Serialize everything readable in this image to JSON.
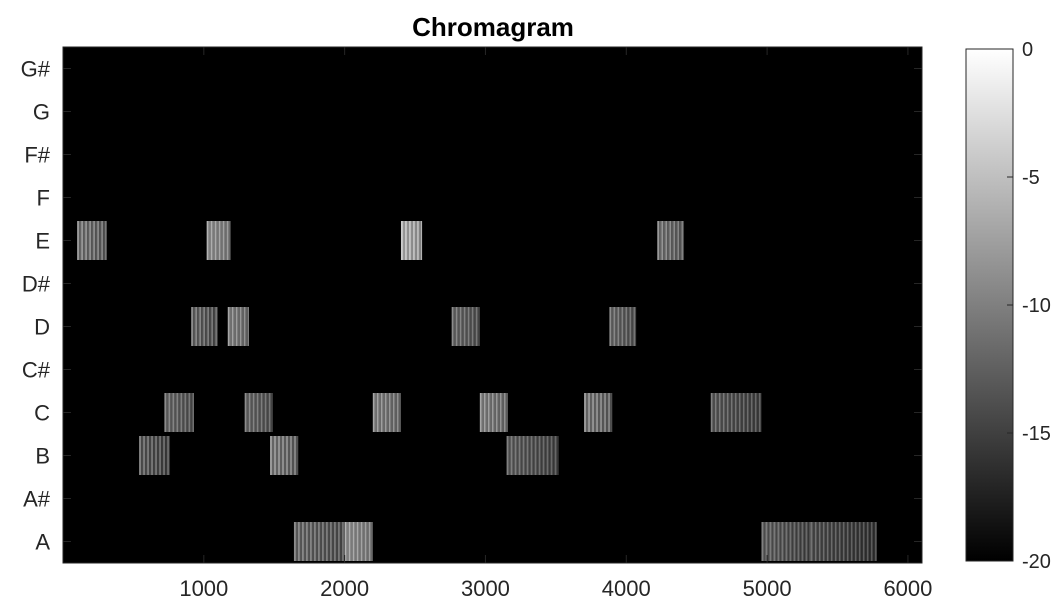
{
  "chart_data": {
    "type": "heatmap",
    "title": "Chromagram",
    "xlabel": "",
    "ylabel": "",
    "xlim": [
      0,
      6100
    ],
    "x_ticks": [
      1000,
      2000,
      3000,
      4000,
      5000,
      6000
    ],
    "y_categories": [
      "A",
      "A#",
      "B",
      "C",
      "C#",
      "D",
      "D#",
      "E",
      "F",
      "F#",
      "G",
      "G#"
    ],
    "background_value": -20,
    "colorbar": {
      "colormap": "gray",
      "clim": [
        -20,
        0
      ],
      "ticks": [
        0,
        -5,
        -10,
        -15,
        -20
      ]
    },
    "blocks": [
      {
        "note": "E",
        "x0": 100,
        "x1": 310,
        "level": -8
      },
      {
        "note": "B",
        "x0": 540,
        "x1": 760,
        "level": -10
      },
      {
        "note": "C",
        "x0": 720,
        "x1": 930,
        "level": -9
      },
      {
        "note": "D",
        "x0": 910,
        "x1": 1100,
        "level": -9
      },
      {
        "note": "E",
        "x0": 1020,
        "x1": 1190,
        "level": -6
      },
      {
        "note": "D",
        "x0": 1170,
        "x1": 1320,
        "level": -7
      },
      {
        "note": "C",
        "x0": 1290,
        "x1": 1490,
        "level": -9
      },
      {
        "note": "B",
        "x0": 1470,
        "x1": 1670,
        "level": -8
      },
      {
        "note": "A",
        "x0": 1640,
        "x1": 2000,
        "level": -9
      },
      {
        "note": "A",
        "x0": 2000,
        "x1": 2200,
        "level": -6
      },
      {
        "note": "C",
        "x0": 2200,
        "x1": 2400,
        "level": -7
      },
      {
        "note": "E",
        "x0": 2400,
        "x1": 2550,
        "level": -4
      },
      {
        "note": "D",
        "x0": 2760,
        "x1": 2960,
        "level": -9
      },
      {
        "note": "C",
        "x0": 2960,
        "x1": 3160,
        "level": -7
      },
      {
        "note": "B",
        "x0": 3150,
        "x1": 3520,
        "level": -10
      },
      {
        "note": "C",
        "x0": 3700,
        "x1": 3900,
        "level": -8
      },
      {
        "note": "D",
        "x0": 3880,
        "x1": 4070,
        "level": -9
      },
      {
        "note": "E",
        "x0": 4220,
        "x1": 4410,
        "level": -8
      },
      {
        "note": "C",
        "x0": 4600,
        "x1": 4960,
        "level": -10
      },
      {
        "note": "A",
        "x0": 4960,
        "x1": 5310,
        "level": -10
      },
      {
        "note": "A",
        "x0": 5310,
        "x1": 5780,
        "level": -11
      }
    ]
  }
}
